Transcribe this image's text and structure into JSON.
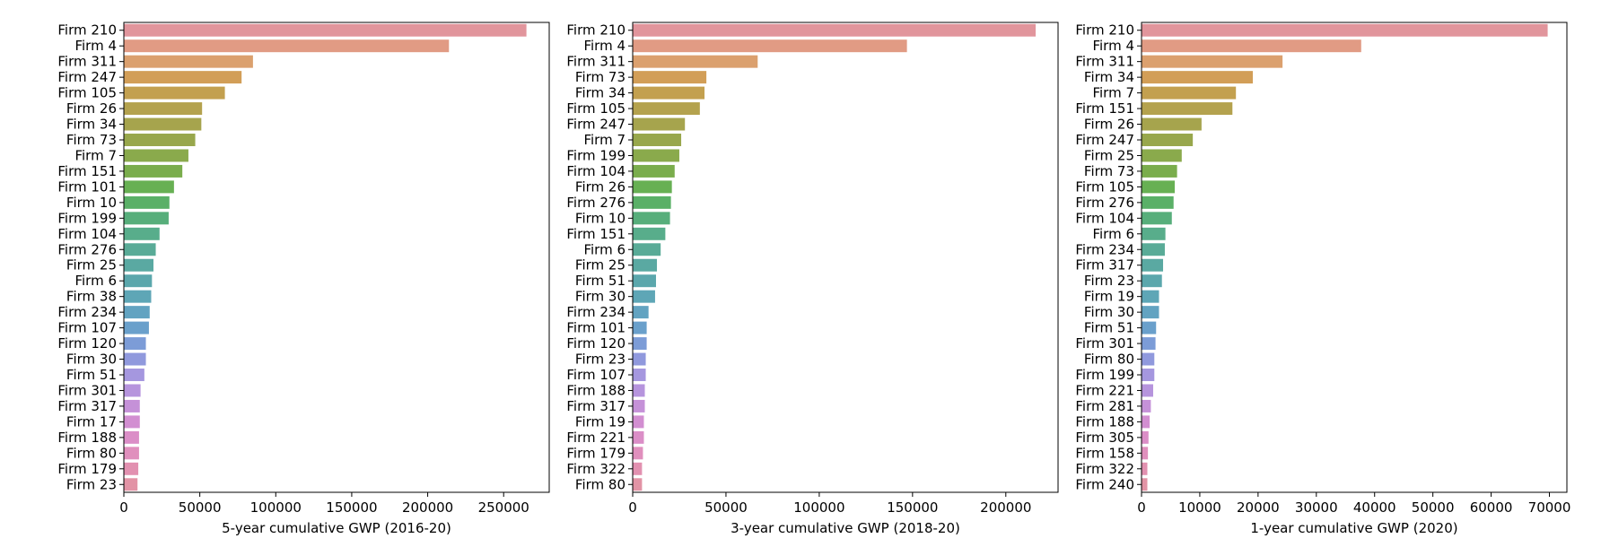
{
  "chart_data": [
    {
      "type": "bar",
      "orientation": "horizontal",
      "title": "",
      "xlabel": "5-year cumulative GWP (2016-20)",
      "ylabel": "",
      "xlim": [
        0,
        280000
      ],
      "xticks": [
        0,
        50000,
        100000,
        150000,
        200000,
        250000
      ],
      "categories": [
        "Firm 210",
        "Firm 4",
        "Firm 311",
        "Firm 247",
        "Firm 105",
        "Firm 26",
        "Firm 34",
        "Firm 73",
        "Firm 7",
        "Firm 151",
        "Firm 101",
        "Firm 10",
        "Firm 199",
        "Firm 104",
        "Firm 276",
        "Firm 25",
        "Firm 6",
        "Firm 38",
        "Firm 234",
        "Firm 107",
        "Firm 120",
        "Firm 30",
        "Firm 51",
        "Firm 301",
        "Firm 317",
        "Firm 17",
        "Firm 188",
        "Firm 80",
        "Firm 179",
        "Firm 23"
      ],
      "values": [
        265000,
        214000,
        85000,
        77500,
        66500,
        51500,
        51000,
        47000,
        42500,
        38500,
        33000,
        30000,
        29500,
        23500,
        21000,
        19500,
        18500,
        18000,
        17000,
        16500,
        14500,
        14500,
        13500,
        11000,
        10500,
        10500,
        10000,
        10000,
        9500,
        9000
      ]
    },
    {
      "type": "bar",
      "orientation": "horizontal",
      "title": "",
      "xlabel": "3-year cumulative GWP (2018-20)",
      "ylabel": "",
      "xlim": [
        0,
        228000
      ],
      "xticks": [
        0,
        50000,
        100000,
        150000,
        200000
      ],
      "categories": [
        "Firm 210",
        "Firm 4",
        "Firm 311",
        "Firm 73",
        "Firm 34",
        "Firm 105",
        "Firm 247",
        "Firm 7",
        "Firm 199",
        "Firm 104",
        "Firm 26",
        "Firm 276",
        "Firm 10",
        "Firm 151",
        "Firm 6",
        "Firm 25",
        "Firm 51",
        "Firm 30",
        "Firm 234",
        "Firm 101",
        "Firm 120",
        "Firm 23",
        "Firm 107",
        "Firm 188",
        "Firm 317",
        "Firm 19",
        "Firm 221",
        "Firm 179",
        "Firm 322",
        "Firm 80"
      ],
      "values": [
        216000,
        147000,
        67000,
        39500,
        38500,
        36000,
        28000,
        26000,
        25000,
        22500,
        21000,
        20500,
        20000,
        17500,
        15000,
        13000,
        12500,
        12000,
        8500,
        7500,
        7500,
        7000,
        7000,
        6500,
        6500,
        6000,
        6000,
        5500,
        5000,
        5000
      ]
    },
    {
      "type": "bar",
      "orientation": "horizontal",
      "title": "",
      "xlabel": "1-year cumulative GWP (2020)",
      "ylabel": "",
      "xlim": [
        0,
        73000
      ],
      "xticks": [
        0,
        10000,
        20000,
        30000,
        40000,
        50000,
        60000,
        70000
      ],
      "categories": [
        "Firm 210",
        "Firm 4",
        "Firm 311",
        "Firm 34",
        "Firm 7",
        "Firm 151",
        "Firm 26",
        "Firm 247",
        "Firm 25",
        "Firm 73",
        "Firm 105",
        "Firm 276",
        "Firm 104",
        "Firm 6",
        "Firm 234",
        "Firm 317",
        "Firm 23",
        "Firm 19",
        "Firm 30",
        "Firm 51",
        "Firm 301",
        "Firm 80",
        "Firm 199",
        "Firm 221",
        "Firm 281",
        "Firm 188",
        "Firm 305",
        "Firm 158",
        "Firm 322",
        "Firm 240"
      ],
      "values": [
        69700,
        37700,
        24200,
        19100,
        16200,
        15600,
        10300,
        8800,
        6900,
        6100,
        5700,
        5500,
        5200,
        4100,
        4000,
        3700,
        3500,
        3000,
        3000,
        2500,
        2400,
        2200,
        2200,
        2000,
        1600,
        1400,
        1200,
        1100,
        1000,
        1000
      ]
    }
  ],
  "palette": [
    "#e1959c",
    "#e19b84",
    "#dba06e",
    "#d29e57",
    "#c3a04f",
    "#b4a24e",
    "#a6a44d",
    "#98a74c",
    "#8aaa4c",
    "#7aad4c",
    "#67b053",
    "#5ab067",
    "#57ae7b",
    "#58ad8b",
    "#59ab97",
    "#5aa9a2",
    "#5ba7ac",
    "#5ea6b6",
    "#62a3c1",
    "#6aa0cb",
    "#7c9cd7",
    "#9099dd",
    "#a597df",
    "#b694dd",
    "#c591d8",
    "#d28ed1",
    "#db8ec7",
    "#e08fbd",
    "#e291b0",
    "#e293a5"
  ]
}
